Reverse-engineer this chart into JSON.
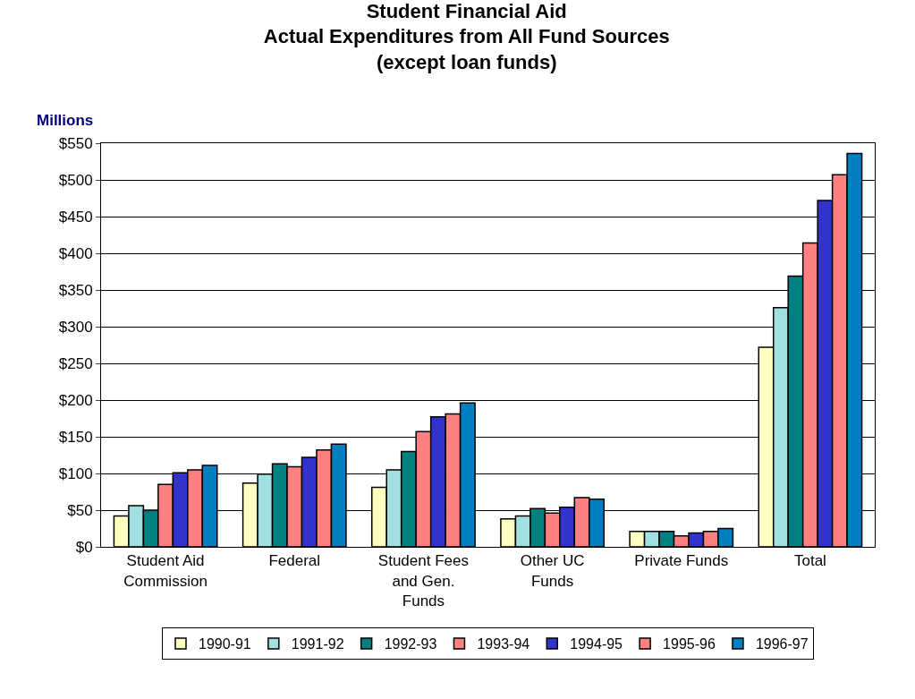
{
  "chart_data": {
    "type": "bar",
    "title": "Student Financial Aid\nActual Expenditures from All Fund Sources\n(except loan funds)",
    "ylabel": "Millions",
    "categories": [
      "Student Aid Commission",
      "Federal",
      "Student Fees and Gen. Funds",
      "Other UC Funds",
      "Private Funds",
      "Total"
    ],
    "series": [
      {
        "name": "1990-91",
        "color": "#ffffc0",
        "values": [
          42,
          87,
          81,
          38,
          21,
          272
        ]
      },
      {
        "name": "1991-92",
        "color": "#a0e0e0",
        "values": [
          56,
          99,
          105,
          42,
          21,
          326
        ]
      },
      {
        "name": "1992-93",
        "color": "#008080",
        "values": [
          50,
          113,
          130,
          52,
          21,
          369
        ]
      },
      {
        "name": "1993-94",
        "color": "#ff8080",
        "values": [
          85,
          109,
          157,
          46,
          15,
          414
        ]
      },
      {
        "name": "1994-95",
        "color": "#3333cc",
        "values": [
          101,
          122,
          177,
          54,
          19,
          472
        ]
      },
      {
        "name": "1995-96",
        "color": "#ff8080",
        "values": [
          105,
          132,
          181,
          67,
          21,
          507
        ]
      },
      {
        "name": "1996-97",
        "color": "#0080c0",
        "values": [
          111,
          140,
          196,
          65,
          25,
          536
        ]
      }
    ],
    "ylim": [
      0,
      550
    ],
    "yticks": [
      {
        "value": 0,
        "label": "$0"
      },
      {
        "value": 50,
        "label": "$50"
      },
      {
        "value": 100,
        "label": "$100"
      },
      {
        "value": 150,
        "label": "$150"
      },
      {
        "value": 200,
        "label": "$200"
      },
      {
        "value": 250,
        "label": "$250"
      },
      {
        "value": 300,
        "label": "$300"
      },
      {
        "value": 350,
        "label": "$350"
      },
      {
        "value": 400,
        "label": "$400"
      },
      {
        "value": 450,
        "label": "$450"
      },
      {
        "value": 500,
        "label": "$500"
      },
      {
        "value": 550,
        "label": "$550"
      }
    ],
    "grid": "y",
    "legend": "bottom"
  }
}
